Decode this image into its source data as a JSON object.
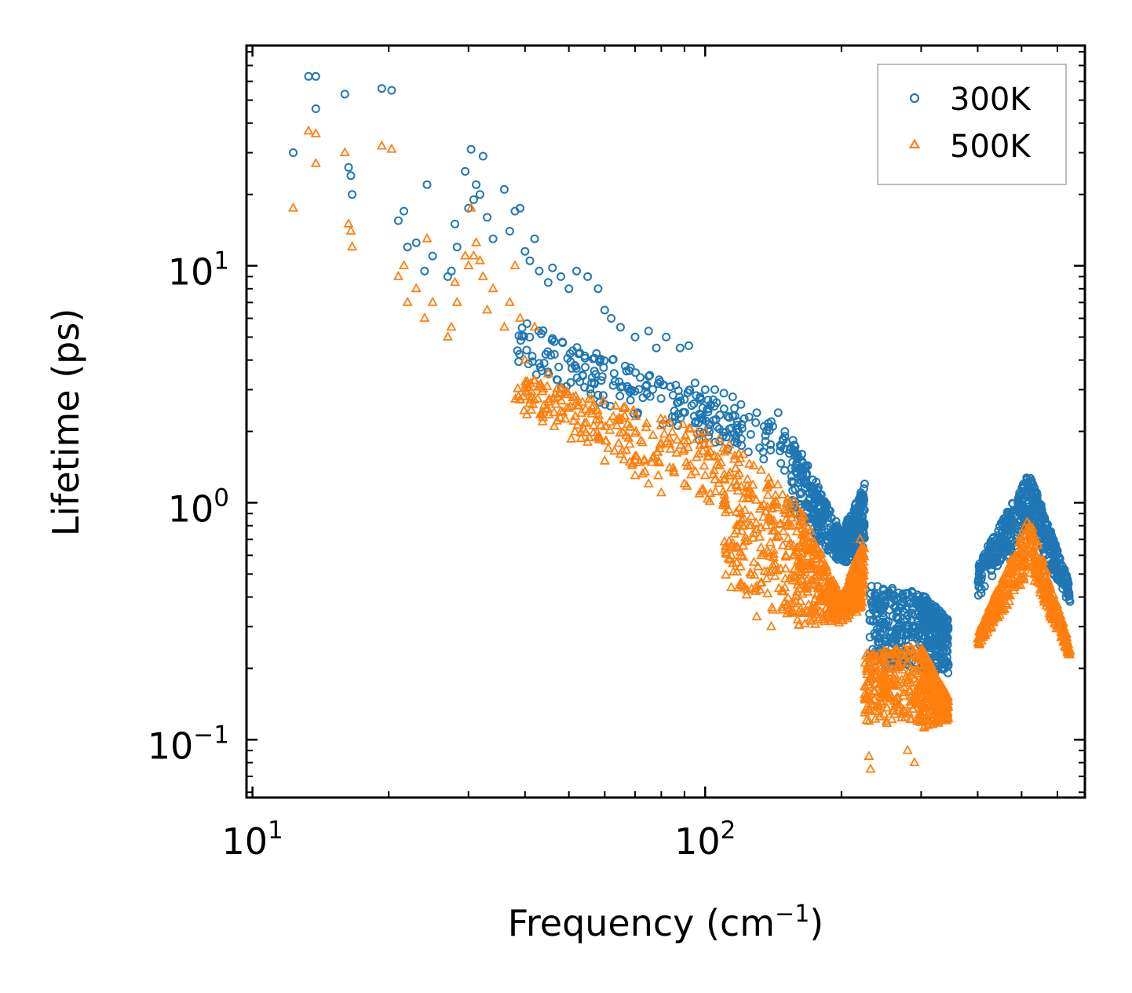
{
  "chart_data": {
    "type": "scatter",
    "title": "",
    "xlabel": "Frequency (cm",
    "xlabel_sup": "−1",
    "xlabel_tail": ")",
    "ylabel": "Lifetime (ps)",
    "xscale": "log",
    "yscale": "log",
    "xlim": [
      9.7,
      690
    ],
    "ylim": [
      0.057,
      85
    ],
    "x_tick_labels": [
      {
        "base": "10",
        "exp": "1",
        "value": 10
      },
      {
        "base": "10",
        "exp": "2",
        "value": 100
      }
    ],
    "y_tick_labels": [
      {
        "base": "10",
        "exp": "−1",
        "value": 0.1
      },
      {
        "base": "10",
        "exp": "0",
        "value": 1
      },
      {
        "base": "10",
        "exp": "1",
        "value": 10
      }
    ],
    "legend": {
      "position": "top-right"
    },
    "colors": {
      "s300": "#1f77b4",
      "s500": "#ff7f0e"
    },
    "series": [
      {
        "name": "300K",
        "marker": "circle",
        "color": "#1f77b4",
        "points": [
          [
            12.3,
            30
          ],
          [
            13.3,
            63
          ],
          [
            13.8,
            63
          ],
          [
            13.8,
            46
          ],
          [
            16,
            53
          ],
          [
            16.3,
            26
          ],
          [
            16.5,
            24
          ],
          [
            16.6,
            20
          ],
          [
            19.3,
            56
          ],
          [
            20.3,
            55
          ],
          [
            21,
            15.5
          ],
          [
            21.6,
            17
          ],
          [
            22,
            12
          ],
          [
            23,
            12.5
          ],
          [
            24,
            9.5
          ],
          [
            24.3,
            22
          ],
          [
            25,
            11
          ],
          [
            27,
            9
          ],
          [
            27.5,
            9.5
          ],
          [
            28,
            15
          ],
          [
            28.3,
            12
          ],
          [
            29.5,
            25
          ],
          [
            30,
            17.5
          ],
          [
            30.4,
            31
          ],
          [
            30.8,
            19
          ],
          [
            31.2,
            22
          ],
          [
            31.8,
            20
          ],
          [
            32.3,
            29
          ],
          [
            33,
            16
          ],
          [
            34,
            13
          ],
          [
            36,
            21
          ],
          [
            37,
            14
          ],
          [
            38,
            17
          ],
          [
            39,
            17.5
          ],
          [
            40,
            11.5
          ],
          [
            41,
            10.5
          ],
          [
            42,
            13
          ],
          [
            43,
            9.5
          ],
          [
            45,
            8.5
          ],
          [
            46,
            9.8
          ],
          [
            48,
            9
          ],
          [
            50,
            8
          ],
          [
            52,
            9.5
          ],
          [
            55,
            9
          ],
          [
            58,
            8
          ],
          [
            60,
            6.5
          ],
          [
            62,
            6
          ],
          [
            65,
            5.5
          ],
          [
            70,
            5
          ],
          [
            75,
            5.3
          ],
          [
            78,
            4.5
          ],
          [
            82,
            5
          ],
          [
            88,
            4.5
          ],
          [
            92,
            4.6
          ],
          [
            95,
            3.2
          ],
          [
            100,
            3
          ],
          [
            105,
            3
          ],
          [
            110,
            2.9
          ],
          [
            115,
            2.8
          ],
          [
            120,
            2.6
          ],
          [
            125,
            2.3
          ],
          [
            130,
            2.4
          ],
          [
            135,
            2.1
          ],
          [
            140,
            2.2
          ],
          [
            145,
            2.4
          ],
          [
            150,
            2
          ],
          [
            155,
            1.7
          ],
          [
            160,
            1.6
          ],
          [
            170,
            1.1
          ],
          [
            180,
            0.85
          ],
          [
            190,
            0.75
          ],
          [
            200,
            0.65
          ],
          [
            210,
            0.62
          ],
          [
            215,
            0.8
          ],
          [
            220,
            1.05
          ],
          [
            225,
            1.2
          ]
        ],
        "bands": [
          {
            "x": [
              38,
              155
            ],
            "y_top": [
              6,
              2.0
            ],
            "y_bot": [
              3.6,
              1.3
            ]
          },
          {
            "x": [
              155,
              200
            ],
            "y_top": [
              2.0,
              0.75
            ],
            "y_bot": [
              0.9,
              0.55
            ]
          },
          {
            "x": [
              200,
              225
            ],
            "y_top": [
              0.75,
              1.2
            ],
            "y_bot": [
              0.55,
              0.6
            ]
          },
          {
            "x": [
              230,
              300
            ],
            "y_top": [
              0.45,
              0.42
            ],
            "y_bot": [
              0.2,
              0.2
            ]
          },
          {
            "x": [
              300,
              345
            ],
            "y_top": [
              0.42,
              0.32
            ],
            "y_bot": [
              0.2,
              0.19
            ]
          },
          {
            "x": [
              400,
              520
            ],
            "y_top": [
              0.55,
              1.35
            ],
            "y_bot": [
              0.38,
              0.8
            ]
          },
          {
            "x": [
              520,
              640
            ],
            "y_top": [
              1.35,
              0.45
            ],
            "y_bot": [
              0.8,
              0.36
            ]
          }
        ]
      },
      {
        "name": "500K",
        "marker": "triangle",
        "color": "#ff7f0e",
        "points": [
          [
            12.3,
            17.5
          ],
          [
            13.3,
            37
          ],
          [
            13.8,
            36
          ],
          [
            13.8,
            27
          ],
          [
            16,
            30
          ],
          [
            16.3,
            15
          ],
          [
            16.5,
            14
          ],
          [
            16.6,
            12
          ],
          [
            19.3,
            32
          ],
          [
            20.3,
            31
          ],
          [
            21,
            9
          ],
          [
            21.6,
            10
          ],
          [
            22,
            7
          ],
          [
            23,
            8
          ],
          [
            24,
            6
          ],
          [
            24.3,
            13
          ],
          [
            25,
            7
          ],
          [
            27,
            5
          ],
          [
            27.5,
            5.5
          ],
          [
            28,
            8.5
          ],
          [
            28.3,
            7
          ],
          [
            29.5,
            11
          ],
          [
            30,
            10
          ],
          [
            30.4,
            17.5
          ],
          [
            30.8,
            11
          ],
          [
            31.2,
            12.5
          ],
          [
            31.8,
            10.5
          ],
          [
            32.3,
            9
          ],
          [
            33,
            6.5
          ],
          [
            34,
            8
          ],
          [
            36,
            5.5
          ],
          [
            37,
            7
          ],
          [
            38,
            10
          ],
          [
            39,
            6
          ],
          [
            40,
            4
          ],
          [
            42,
            5.5
          ],
          [
            45,
            3.5
          ],
          [
            48,
            3
          ],
          [
            50,
            2.5
          ],
          [
            55,
            1.8
          ],
          [
            60,
            1.5
          ],
          [
            65,
            1.6
          ],
          [
            70,
            1.3
          ],
          [
            75,
            1.2
          ],
          [
            80,
            1.1
          ],
          [
            85,
            1.4
          ],
          [
            90,
            1.2
          ],
          [
            100,
            1.3
          ],
          [
            105,
            1.25
          ],
          [
            110,
            1.0
          ],
          [
            120,
            0.45
          ],
          [
            130,
            0.33
          ],
          [
            140,
            0.3
          ],
          [
            150,
            0.38
          ],
          [
            160,
            0.32
          ],
          [
            170,
            0.55
          ],
          [
            180,
            0.4
          ],
          [
            190,
            0.38
          ],
          [
            200,
            0.34
          ],
          [
            210,
            0.38
          ],
          [
            220,
            0.7
          ],
          [
            230,
            0.085
          ],
          [
            232,
            0.075
          ],
          [
            250,
            0.2
          ],
          [
            280,
            0.09
          ],
          [
            290,
            0.08
          ],
          [
            300,
            0.12
          ],
          [
            330,
            0.14
          ]
        ],
        "bands": [
          {
            "x": [
              38,
              110
            ],
            "y_top": [
              3.5,
              1.9
            ],
            "y_bot": [
              2.4,
              0.9
            ]
          },
          {
            "x": [
              110,
              160
            ],
            "y_top": [
              1.9,
              1.0
            ],
            "y_bot": [
              0.45,
              0.3
            ]
          },
          {
            "x": [
              160,
              200
            ],
            "y_top": [
              1.0,
              0.4
            ],
            "y_bot": [
              0.3,
              0.31
            ]
          },
          {
            "x": [
              200,
              225
            ],
            "y_top": [
              0.4,
              0.72
            ],
            "y_bot": [
              0.31,
              0.36
            ]
          },
          {
            "x": [
              225,
              300
            ],
            "y_top": [
              0.23,
              0.25
            ],
            "y_bot": [
              0.12,
              0.11
            ]
          },
          {
            "x": [
              300,
              345
            ],
            "y_top": [
              0.25,
              0.15
            ],
            "y_bot": [
              0.11,
              0.12
            ]
          },
          {
            "x": [
              400,
              520
            ],
            "y_top": [
              0.28,
              0.88
            ],
            "y_bot": [
              0.24,
              0.5
            ]
          },
          {
            "x": [
              520,
              640
            ],
            "y_top": [
              0.88,
              0.25
            ],
            "y_bot": [
              0.5,
              0.22
            ]
          }
        ]
      }
    ]
  }
}
